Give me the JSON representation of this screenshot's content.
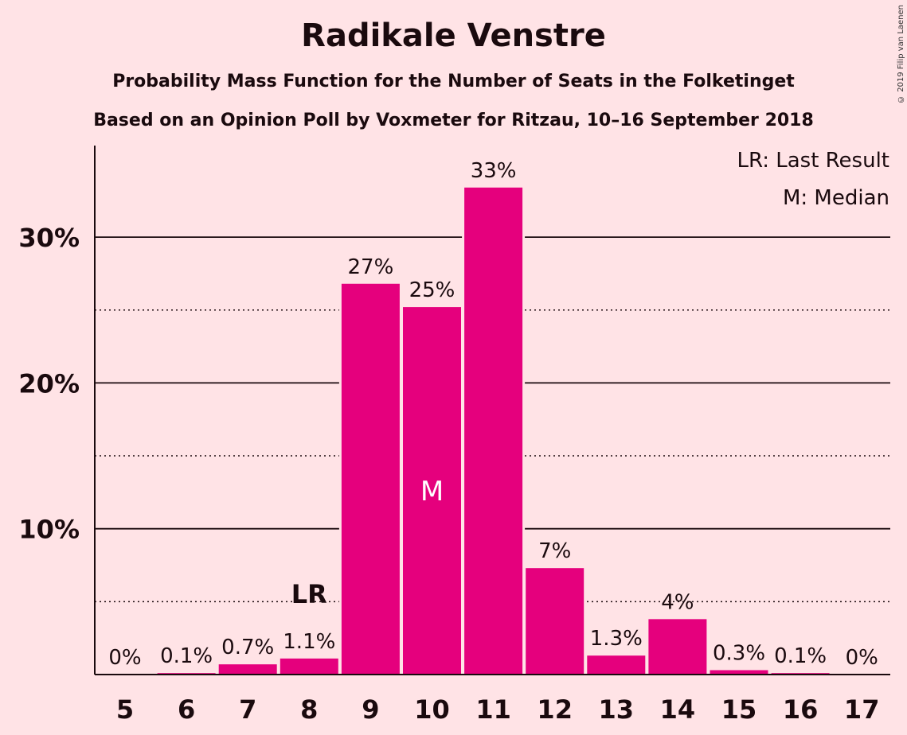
{
  "chart_data": {
    "type": "bar",
    "title": "Radikale Venstre",
    "subtitle": "Probability Mass Function for the Number of Seats in the Folketinget",
    "subtitle2": "Based on an Opinion Poll by Voxmeter for Ritzau, 10–16 September 2018",
    "categories": [
      "5",
      "6",
      "7",
      "8",
      "9",
      "10",
      "11",
      "12",
      "13",
      "14",
      "15",
      "16",
      "17"
    ],
    "values": [
      0,
      0.1,
      0.7,
      1.1,
      26.8,
      25.2,
      33.4,
      7.3,
      1.3,
      3.8,
      0.3,
      0.1,
      0
    ],
    "value_labels": [
      "0%",
      "0.1%",
      "0.7%",
      "1.1%",
      "27%",
      "25%",
      "33%",
      "7%",
      "1.3%",
      "4%",
      "0.3%",
      "0.1%",
      "0%"
    ],
    "ylim": [
      0,
      36
    ],
    "yticks": [
      10,
      20,
      30
    ],
    "ytick_labels": [
      "10%",
      "20%",
      "30%"
    ],
    "minor_gridlines": [
      5,
      15,
      25
    ],
    "last_result_category": "8",
    "last_result_marker": "LR",
    "median_category": "10",
    "median_marker": "M",
    "legend": [
      "LR: Last Result",
      "M: Median"
    ],
    "legend_position": "top-right",
    "bar_color": "#E5007D",
    "background_color": "#FFE3E6"
  },
  "copyright": "© 2019 Filip van Laenen"
}
